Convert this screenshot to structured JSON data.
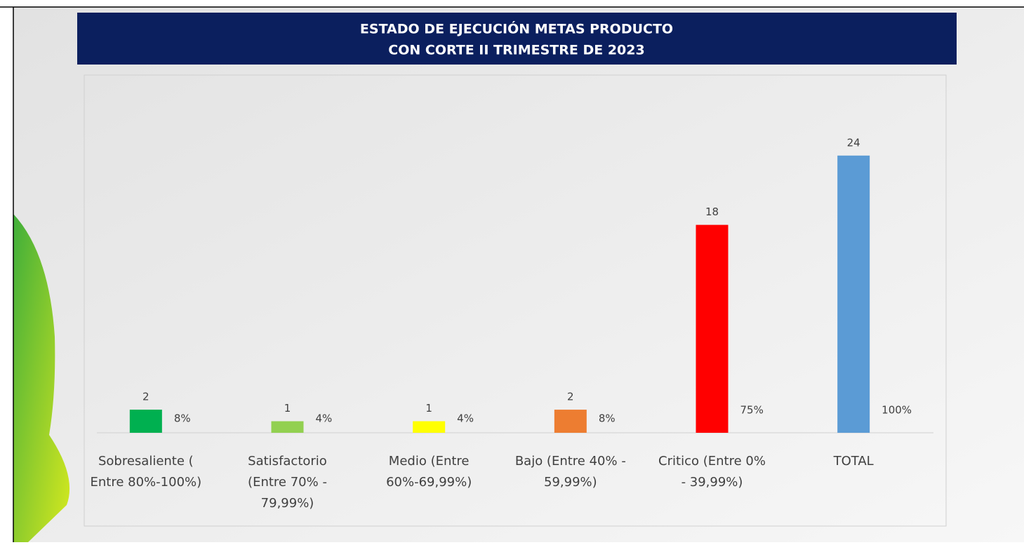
{
  "chart_data": {
    "type": "bar",
    "title": [
      "ESTADO DE EJECUCIÓN METAS PRODUCTO",
      "CON CORTE II TRIMESTRE DE 2023"
    ],
    "categories": [
      [
        "Sobresaliente (",
        "Entre 80%-100%)"
      ],
      [
        "Satisfactorio",
        "(Entre 70% -",
        "79,99%)"
      ],
      [
        "Medio (Entre",
        "60%-69,99%)"
      ],
      [
        "Bajo (Entre 40% -",
        "59,99%)"
      ],
      [
        "Critico (Entre 0%",
        "- 39,99%)"
      ],
      [
        "TOTAL"
      ]
    ],
    "series": [
      {
        "values": [
          2,
          1,
          1,
          2,
          18,
          24
        ],
        "colors": [
          "#00b050",
          "#92d050",
          "#ffff00",
          "#ed7d31",
          "#ff0000",
          "#5b9bd5"
        ]
      },
      {
        "values": [
          8,
          4,
          4,
          8,
          75,
          100
        ],
        "value_labels": [
          "8%",
          "4%",
          "4%",
          "8%",
          "75%",
          "100%"
        ]
      }
    ],
    "ylim": [
      0,
      30
    ]
  }
}
